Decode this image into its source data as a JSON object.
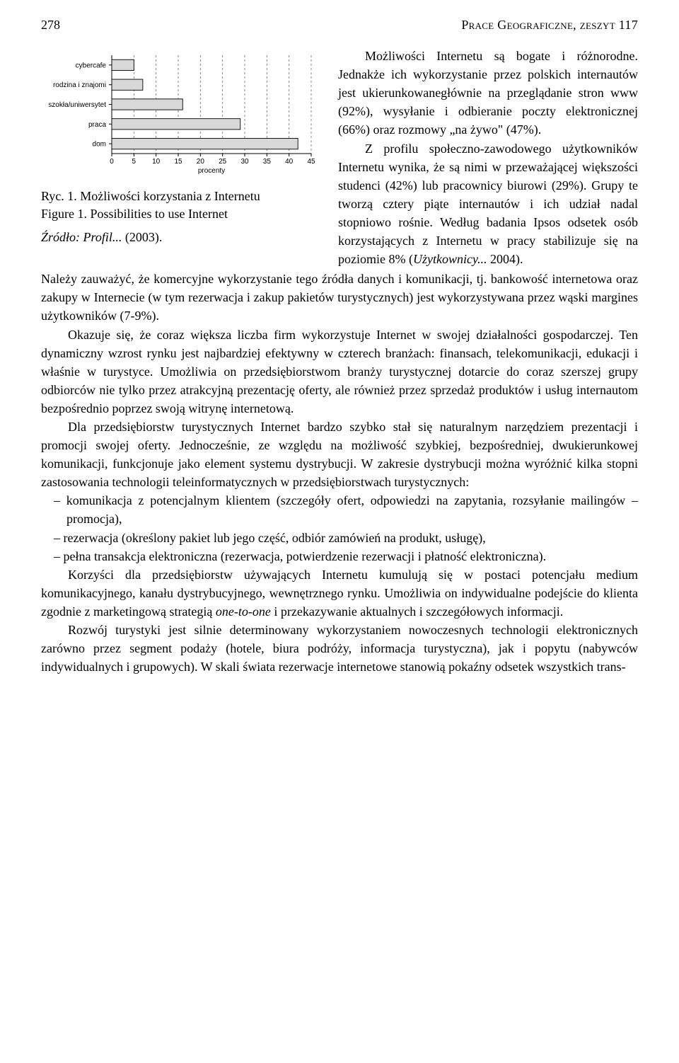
{
  "header": {
    "page_number": "278",
    "running_title": "Prace Geograficzne, zeszyt 117"
  },
  "chart": {
    "type": "bar-horizontal",
    "categories": [
      "cybercafe",
      "rodzina i znajomi",
      "szokła/uniwersytet",
      "praca",
      "dom"
    ],
    "values": [
      5,
      7,
      16,
      29,
      42
    ],
    "bar_color": "#d8d8d8",
    "bar_stroke": "#000000",
    "grid_color": "#6a6a6a",
    "axis_color": "#000000",
    "background_color": "#ffffff",
    "xlim": [
      0,
      45
    ],
    "xtick_step": 5,
    "xticks": [
      0,
      5,
      10,
      15,
      20,
      25,
      30,
      35,
      40,
      45
    ],
    "x_label": "procenty",
    "label_fontsize": 10,
    "bar_height_ratio": 0.55,
    "font_family": "Arial"
  },
  "figure_caption": {
    "ryc_line": "Ryc. 1. Możliwości korzystania z Internetu",
    "figure_line": "Figure 1. Possibilities to use Internet",
    "source_prefix": "Źródło: ",
    "source_italic": "Profil...",
    "source_year": " (2003)."
  },
  "right_paragraph": {
    "text": "Możliwości Internetu są bogate i różnorodne. Jednakże ich wykorzystanie przez polskich internautów jest ukierunkowanegłównie na przeglądanie stron www (92%), wysyłanie i odbieranie poczty elektronicznej (66%) oraz rozmowy „na żywo\" (47%).",
    "para2": "Z profilu społeczno-zawodowego użytkowników Internetu wynika, że są nimi w przeważającej większości studenci (42%) lub pracownicy biurowi (29%). Grupy te tworzą cztery piąte internautów i ich udział nadal stopniowo rośnie. Według badania Ipsos odsetek osób korzystających z Internetu w pracy stabilizuje się na poziomie 8% (",
    "para2_italic": "Użytkownicy...",
    "para2_tail": " 2004)."
  },
  "body_paragraphs": {
    "p1": "Należy zauważyć, że komercyjne wykorzystanie tego źródła danych i komunikacji, tj. bankowość internetowa oraz zakupy w Internecie (w tym rezerwacja i zakup pakietów turystycznych) jest wykorzystywana przez wąski margines użytkowników (7-9%).",
    "p2": "Okazuje się, że coraz większa liczba firm wykorzystuje Internet w swojej działalności gospodarczej. Ten dynamiczny wzrost rynku jest najbardziej efektywny w czterech branżach: finansach, telekomunikacji, edukacji i właśnie w turystyce. Umożliwia on przedsiębiorstwom branży turystycznej dotarcie do coraz szerszej grupy odbiorców nie tylko przez atrakcyjną prezentację oferty, ale również przez sprzedaż produktów i usług internautom bezpośrednio poprzez swoją witrynę internetową.",
    "p3": "Dla przedsiębiorstw turystycznych Internet bardzo szybko stał się naturalnym narzędziem prezentacji i promocji swojej oferty. Jednocześnie, ze względu na możliwość szybkiej, bezpośredniej, dwukierunkowej komunikacji, funkcjonuje jako element systemu dystrybucji. W zakresie dystrybucji można wyróżnić kilka stopni zastosowania technologii teleinformatycznych w przedsiębiorstwach turystycznych:",
    "bullets": [
      "komunikacja z potencjalnym klientem (szczegóły ofert, odpowiedzi na zapytania, rozsyłanie mailingów – promocja),",
      "rezerwacja (określony pakiet lub jego część, odbiór zamówień na produkt, usługę),",
      "pełna transakcja elektroniczna (rezerwacja, potwierdzenie rezerwacji i płatność elektroniczna)."
    ],
    "p4": "Korzyści dla przedsiębiorstw używających Internetu kumulują się w postaci potencjału medium komunikacyjnego, kanału dystrybucyjnego, wewnętrznego rynku. Umożliwia on indywidualne podejście do klienta zgodnie z marketingową strategią ",
    "p4_italic": "one-to-one",
    "p4_tail": " i przekazywanie aktualnych i szczegółowych informacji.",
    "p5": "Rozwój turystyki jest silnie determinowany wykorzystaniem nowoczesnych technologii elektronicznych zarówno przez segment podaży (hotele, biura podróży, informacja turystyczna), jak i popytu (nabywców indywidualnych i grupowych). W skali świata rezerwacje internetowe stanowią pokaźny odsetek wszystkich trans-"
  }
}
